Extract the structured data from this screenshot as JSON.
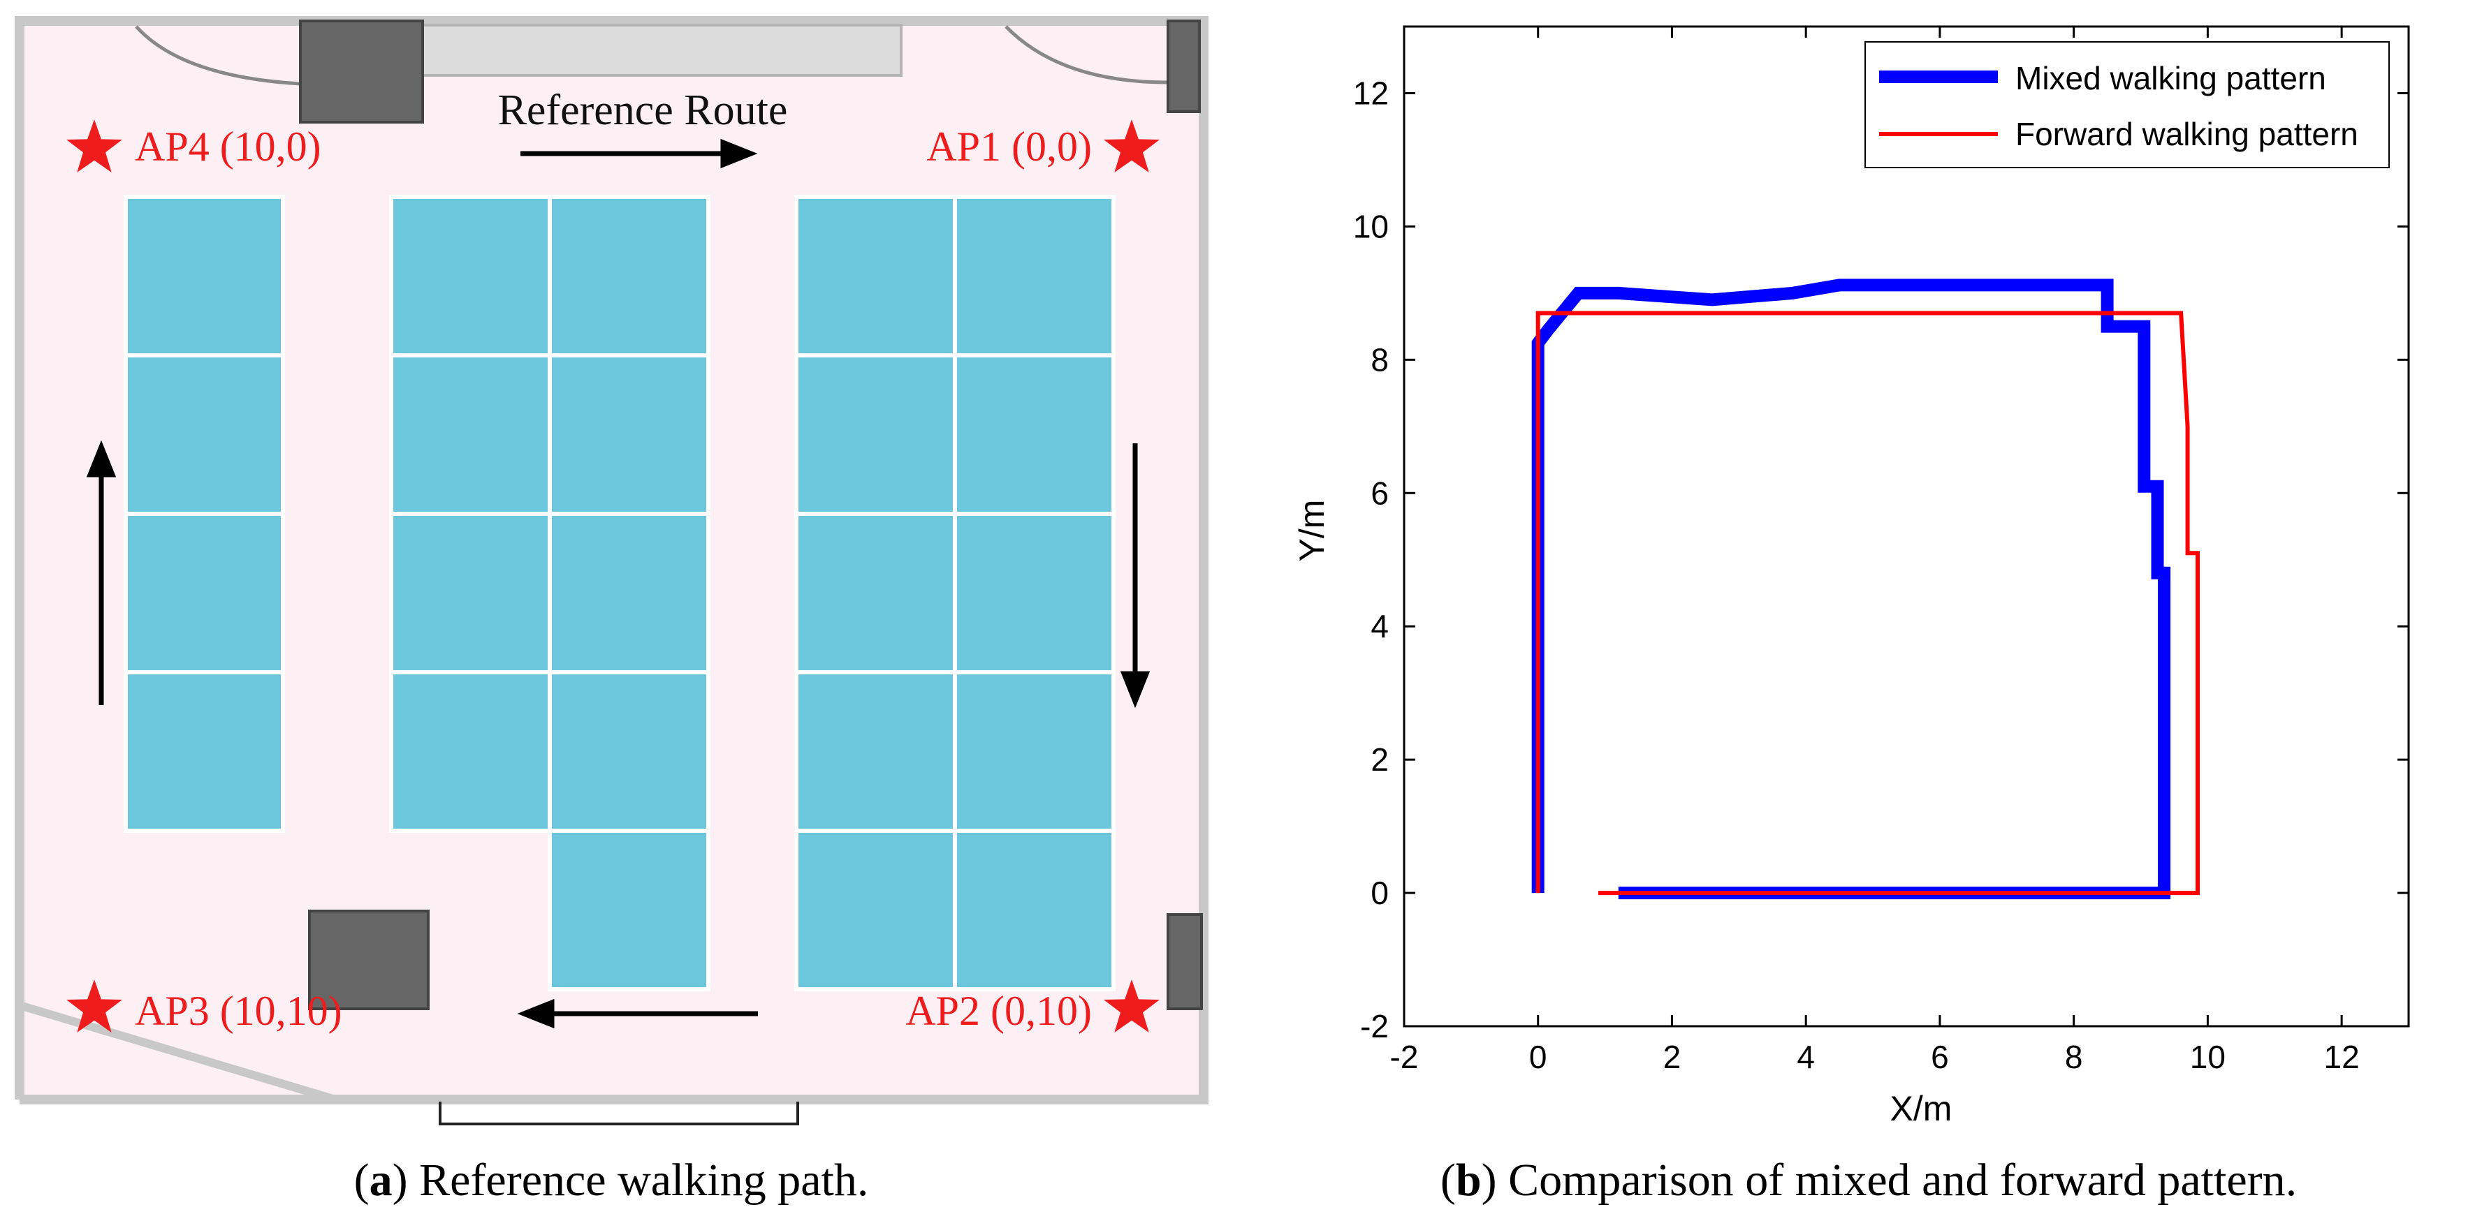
{
  "panel_a": {
    "route_label": "Reference Route",
    "ap_labels": [
      "AP4 (10,0)",
      "AP1 (0,0)",
      "AP3 (10,10)",
      "AP2 (0,10)"
    ],
    "caption_letter": "a",
    "caption_text": " Reference walking path.",
    "colors": {
      "floor": "#fdf0f5",
      "desk": "#6cc6dc",
      "wall": "#c8c8c8",
      "label": "#ee1c1c",
      "furniture": "#666666"
    }
  },
  "panel_b": {
    "caption_letter": "b",
    "caption_text": " Comparison of mixed and forward pattern."
  },
  "chart_data": {
    "type": "line",
    "title": "",
    "xlabel": "X/m",
    "ylabel": "Y/m",
    "xlim": [
      -2,
      13
    ],
    "ylim": [
      -2,
      13
    ],
    "xticks": [
      -2,
      0,
      2,
      4,
      6,
      8,
      10,
      12
    ],
    "yticks": [
      -2,
      0,
      2,
      4,
      6,
      8,
      10,
      12
    ],
    "legend": "top-right",
    "series": [
      {
        "name": "Mixed walking pattern",
        "color": "#0000ff",
        "x": [
          0.0,
          0.0,
          0.15,
          0.6,
          1.2,
          2.6,
          3.8,
          4.5,
          8.5,
          8.5,
          9.05,
          9.05,
          9.25,
          9.25,
          9.35,
          9.35,
          1.2
        ],
        "y": [
          0.0,
          8.25,
          8.45,
          9.0,
          9.0,
          8.9,
          9.0,
          9.12,
          9.12,
          8.5,
          8.5,
          6.1,
          6.1,
          4.8,
          4.8,
          0.0,
          0.0
        ]
      },
      {
        "name": "Forward walking pattern",
        "color": "#ff0000",
        "x": [
          0.0,
          0.0,
          9.6,
          9.7,
          9.7,
          9.85,
          9.85,
          0.9
        ],
        "y": [
          0.0,
          8.7,
          8.7,
          7.0,
          5.1,
          5.1,
          0.0,
          0.0
        ]
      }
    ]
  }
}
